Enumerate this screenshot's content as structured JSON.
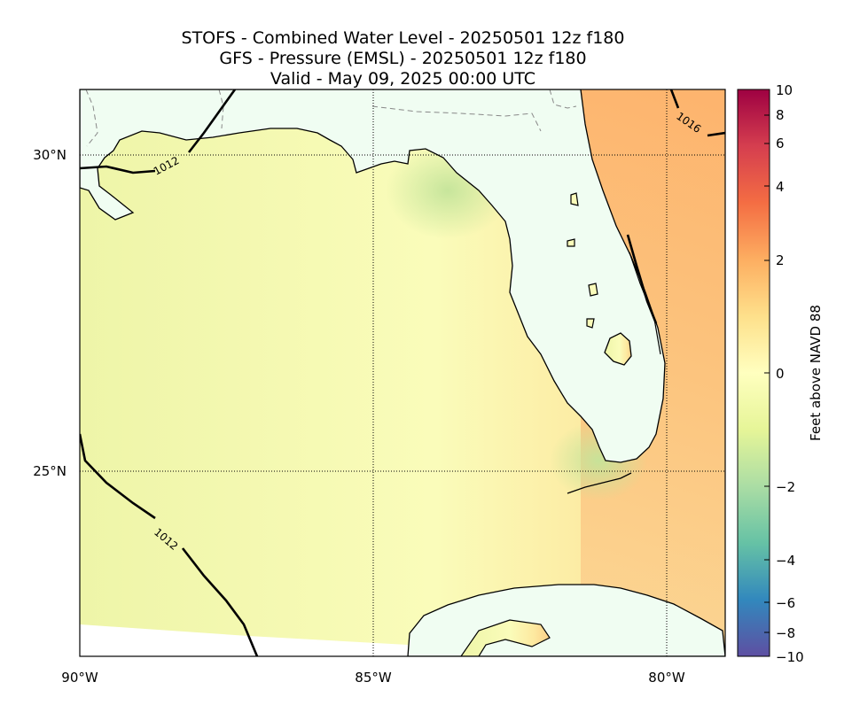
{
  "titles": {
    "line1": "STOFS - Combined Water Level - 20250501 12z f180",
    "line2": "GFS - Pressure (EMSL) - 20250501 12z f180",
    "line3": "Valid - May 09, 2025 00:00 UTC"
  },
  "axes": {
    "lon_ticks": [
      "90°W",
      "85°W",
      "80°W"
    ],
    "lat_ticks": [
      "30°N",
      "25°N"
    ]
  },
  "isobars": {
    "labels": [
      "1012",
      "1016",
      "1012"
    ]
  },
  "colorbar": {
    "label": "Feet above NAVD 88",
    "ticks": [
      "10",
      "8",
      "6",
      "4",
      "2",
      "0",
      "−2",
      "−4",
      "−6",
      "−8",
      "−10"
    ],
    "colors": [
      "#9e0142",
      "#d53e4f",
      "#f46d43",
      "#fdae61",
      "#fee08b",
      "#ffffbf",
      "#e6f598",
      "#abdda4",
      "#66c2a5",
      "#3288bd",
      "#5e4fa2"
    ]
  },
  "colors": {
    "land": "#f0fdf2",
    "water_main": "#f6f9b4",
    "water_east": "#fbd28a",
    "water_warm": "#fdb06a",
    "water_green": "#c6e59a"
  }
}
